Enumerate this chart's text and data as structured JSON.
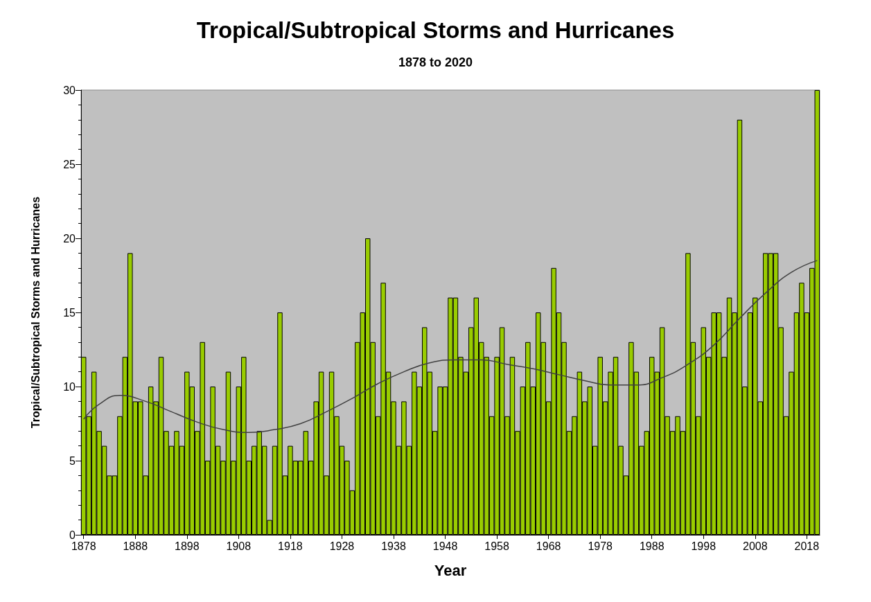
{
  "chart_data": {
    "type": "bar",
    "title": "Tropical/Subtropical Storms and Hurricanes",
    "subtitle": "1878 to 2020",
    "xlabel": "Year",
    "ylabel": "Tropical/Subtropical Storms and Hurricanes",
    "x": [
      1878,
      1879,
      1880,
      1881,
      1882,
      1883,
      1884,
      1885,
      1886,
      1887,
      1888,
      1889,
      1890,
      1891,
      1892,
      1893,
      1894,
      1895,
      1896,
      1897,
      1898,
      1899,
      1900,
      1901,
      1902,
      1903,
      1904,
      1905,
      1906,
      1907,
      1908,
      1909,
      1910,
      1911,
      1912,
      1913,
      1914,
      1915,
      1916,
      1917,
      1918,
      1919,
      1920,
      1921,
      1922,
      1923,
      1924,
      1925,
      1926,
      1927,
      1928,
      1929,
      1930,
      1931,
      1932,
      1933,
      1934,
      1935,
      1936,
      1937,
      1938,
      1939,
      1940,
      1941,
      1942,
      1943,
      1944,
      1945,
      1946,
      1947,
      1948,
      1949,
      1950,
      1951,
      1952,
      1953,
      1954,
      1955,
      1956,
      1957,
      1958,
      1959,
      1960,
      1961,
      1962,
      1963,
      1964,
      1965,
      1966,
      1967,
      1968,
      1969,
      1970,
      1971,
      1972,
      1973,
      1974,
      1975,
      1976,
      1977,
      1978,
      1979,
      1980,
      1981,
      1982,
      1983,
      1984,
      1985,
      1986,
      1987,
      1988,
      1989,
      1990,
      1991,
      1992,
      1993,
      1994,
      1995,
      1996,
      1997,
      1998,
      1999,
      2000,
      2001,
      2002,
      2003,
      2004,
      2005,
      2006,
      2007,
      2008,
      2009,
      2010,
      2011,
      2012,
      2013,
      2014,
      2015,
      2016,
      2017,
      2018,
      2019,
      2020
    ],
    "series": [
      {
        "color": "#99cc00",
        "values": [
          12,
          8,
          11,
          7,
          6,
          4,
          4,
          8,
          12,
          19,
          9,
          9,
          4,
          10,
          9,
          12,
          7,
          6,
          7,
          6,
          11,
          10,
          7,
          13,
          5,
          10,
          6,
          5,
          11,
          5,
          10,
          12,
          5,
          6,
          7,
          6,
          1,
          6,
          15,
          4,
          6,
          5,
          5,
          7,
          5,
          9,
          11,
          4,
          11,
          8,
          6,
          5,
          3,
          13,
          15,
          20,
          13,
          8,
          17,
          11,
          9,
          6,
          9,
          6,
          11,
          10,
          14,
          11,
          7,
          10,
          10,
          16,
          16,
          12,
          11,
          14,
          16,
          13,
          12,
          8,
          12,
          14,
          8,
          12,
          7,
          10,
          13,
          10,
          15,
          13,
          9,
          18,
          15,
          13,
          7,
          8,
          11,
          9,
          10,
          6,
          12,
          9,
          11,
          12,
          6,
          4,
          13,
          11,
          6,
          7,
          12,
          11,
          14,
          8,
          7,
          8,
          7,
          19,
          13,
          8,
          14,
          12,
          15,
          15,
          12,
          16,
          15,
          28,
          10,
          15,
          16,
          9,
          19,
          19,
          19,
          14,
          8,
          11,
          15,
          17,
          15,
          18,
          30
        ]
      },
      {
        "type": "line",
        "color": "#404040",
        "x": [
          1878,
          1881,
          1885,
          1890,
          1895,
          1900,
          1905,
          1910,
          1915,
          1920,
          1925,
          1930,
          1935,
          1940,
          1945,
          1950,
          1955,
          1960,
          1965,
          1970,
          1975,
          1980,
          1985,
          1990,
          1995,
          2000,
          2005,
          2010,
          2015,
          2020
        ],
        "values": [
          7.8,
          8.8,
          9.4,
          9.0,
          8.3,
          7.6,
          7.1,
          6.9,
          7.1,
          7.5,
          8.3,
          9.2,
          10.2,
          11.0,
          11.6,
          11.8,
          11.8,
          11.5,
          11.2,
          10.8,
          10.4,
          10.1,
          10.1,
          10.6,
          11.5,
          12.8,
          14.6,
          16.3,
          17.7,
          18.5
        ]
      }
    ],
    "xlim": [
      1877.5,
      2020.5
    ],
    "xticks": [
      1878,
      1888,
      1898,
      1908,
      1918,
      1928,
      1938,
      1948,
      1958,
      1968,
      1978,
      1988,
      1998,
      2008,
      2018
    ],
    "ylim": [
      0,
      30
    ],
    "yticks": [
      0,
      5,
      10,
      15,
      20,
      25,
      30
    ],
    "grid": false,
    "marker": "none",
    "line_style": "solid"
  }
}
